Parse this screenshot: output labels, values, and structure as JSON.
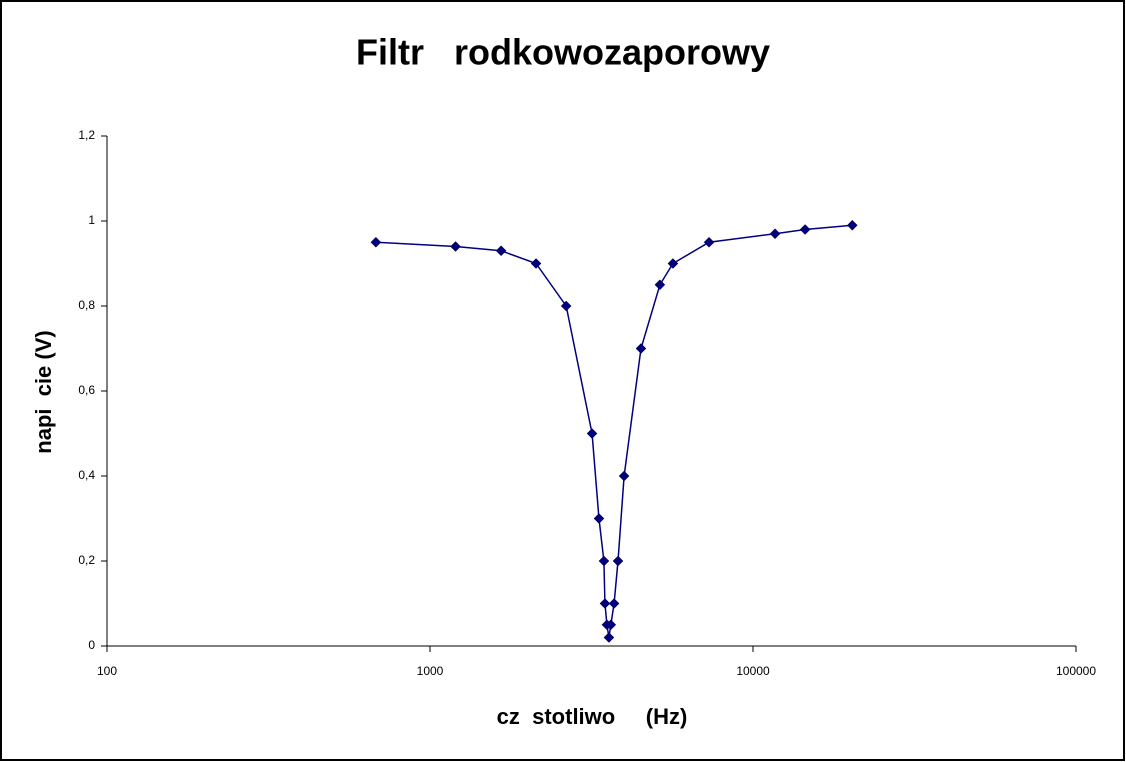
{
  "chart_data": {
    "type": "line",
    "title": "Filtr   rodkowozaporowy",
    "x_label": "cz  stotliwo     (Hz)",
    "y_label": "napi  cie (V)",
    "x_scale": "log",
    "grid": false,
    "x": [
      680,
      1200,
      1660,
      2130,
      2640,
      3175,
      3335,
      3455,
      3480,
      3530,
      3580,
      3630,
      3715,
      3820,
      3990,
      4500,
      5150,
      5650,
      7310,
      11700,
      14500,
      20300
    ],
    "series": [
      {
        "color": "#000080",
        "values": [
          0.95,
          0.94,
          0.93,
          0.9,
          0.8,
          0.5,
          0.3,
          0.2,
          0.1,
          0.05,
          0.02,
          0.05,
          0.1,
          0.2,
          0.4,
          0.7,
          0.85,
          0.9,
          0.95,
          0.97,
          0.98,
          0.99
        ]
      }
    ],
    "xlim": [
      100,
      100000
    ],
    "xticks": [
      100,
      1000,
      10000,
      100000
    ],
    "ylim": [
      0,
      1.2
    ],
    "yticks": [
      0,
      {
        "value": 0.2,
        "label": "0,2"
      },
      {
        "value": 0.4,
        "label": "0,4"
      },
      {
        "value": 0.6,
        "label": "0,6"
      },
      {
        "value": 0.8,
        "label": "0,8"
      },
      1,
      {
        "value": 1.2,
        "label": "1,2"
      }
    ]
  }
}
